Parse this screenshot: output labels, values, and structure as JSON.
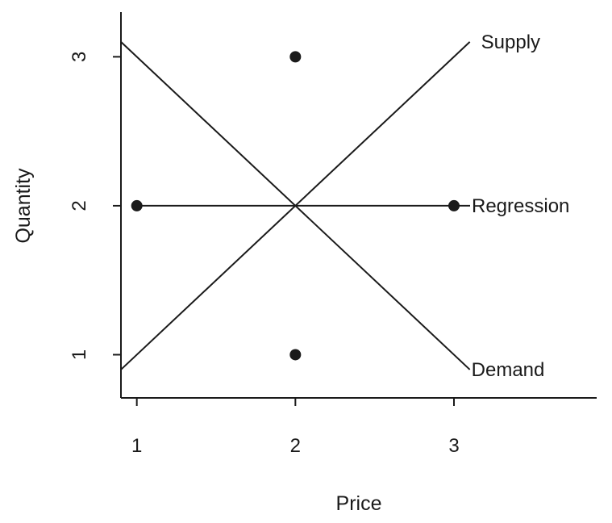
{
  "chart_data": {
    "type": "line",
    "xlabel": "Price",
    "ylabel": "Quantity",
    "xlim": [
      0.9,
      3.9
    ],
    "ylim": [
      0.71,
      3.3
    ],
    "x_ticks": [
      1,
      2,
      3
    ],
    "y_ticks": [
      1,
      2,
      3
    ],
    "grid": false,
    "lines": [
      {
        "name": "Supply",
        "x": [
          0.9,
          3.1
        ],
        "y": [
          0.9,
          3.1
        ]
      },
      {
        "name": "Demand",
        "x": [
          0.9,
          3.1
        ],
        "y": [
          3.1,
          0.9
        ]
      },
      {
        "name": "Regression",
        "x": [
          1,
          3
        ],
        "y": [
          2,
          2
        ]
      }
    ],
    "points": {
      "x": [
        1,
        2,
        2,
        3
      ],
      "y": [
        2,
        3,
        1,
        2
      ]
    }
  }
}
